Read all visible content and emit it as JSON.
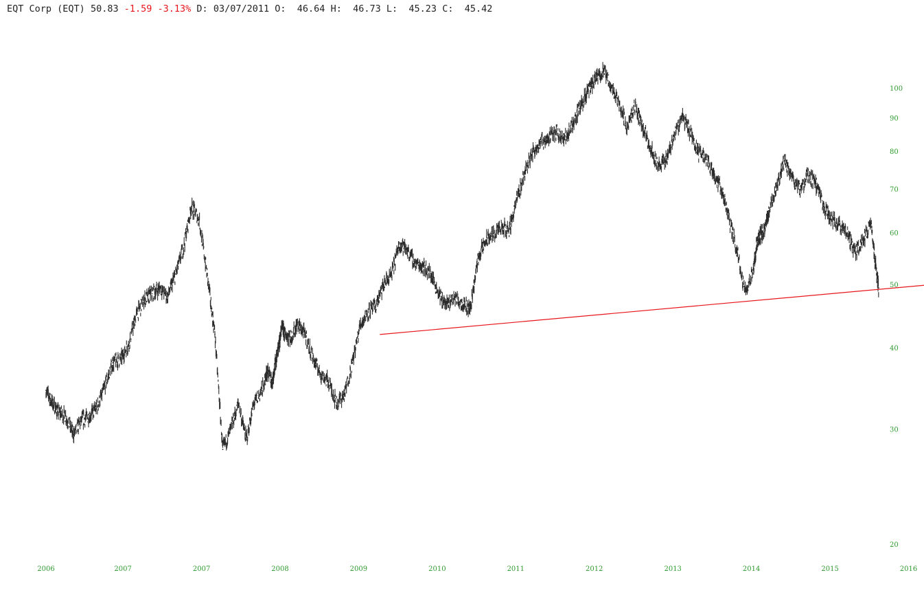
{
  "header": {
    "name": "EQT Corp (EQT)",
    "last": "50.83",
    "change": "-1.59",
    "change_pct": "-3.13%",
    "date_label": "D:",
    "date": "03/07/2011",
    "open_label": "O:",
    "open": "46.64",
    "high_label": "H:",
    "high": "46.73",
    "low_label": "L:",
    "low": "45.23",
    "close_label": "C:",
    "close": "45.42"
  },
  "colors": {
    "price": "#2b2b2b",
    "trendline": "#e8141a",
    "axis_text": "#2e9a2e",
    "negative": "#e8141a"
  },
  "chart_data": {
    "type": "line",
    "title": "",
    "xlabel": "",
    "ylabel": "",
    "y_scale": "log",
    "ylim": [
      19.5,
      110
    ],
    "xlim": [
      2006.0,
      2016.85
    ],
    "x_ticks": [
      "2006",
      "2007",
      "2007",
      "2008",
      "2009",
      "2010",
      "2011",
      "2012",
      "2013",
      "2014",
      "2015",
      "2016"
    ],
    "y_ticks": [
      20,
      30,
      40,
      50,
      60,
      70,
      80,
      90,
      100
    ],
    "grid": false,
    "legend": "none",
    "series": [
      {
        "style": "price",
        "x": [
          2006.0,
          2006.08,
          2006.15,
          2006.25,
          2006.35,
          2006.45,
          2006.55,
          2006.65,
          2006.75,
          2006.85,
          2006.95,
          2007.05,
          2007.15,
          2007.25,
          2007.35,
          2007.45,
          2007.55,
          2007.65,
          2007.75,
          2007.85,
          2007.95,
          2008.05,
          2008.15,
          2008.25,
          2008.35,
          2008.45,
          2008.55,
          2008.65,
          2008.75,
          2008.82,
          2008.88,
          2008.92,
          2008.96,
          2009.0,
          2009.05,
          2009.12,
          2009.2,
          2009.3,
          2009.4,
          2009.5,
          2009.6,
          2009.7,
          2009.8,
          2009.9,
          2010.0,
          2010.1,
          2010.2,
          2010.3,
          2010.4,
          2010.5,
          2010.6,
          2010.7,
          2010.8,
          2010.9,
          2011.0,
          2011.1,
          2011.2,
          2011.3,
          2011.4,
          2011.5,
          2011.6,
          2011.7,
          2011.8,
          2011.9,
          2012.0,
          2012.1,
          2012.2,
          2012.3,
          2012.4,
          2012.5,
          2012.6,
          2012.7,
          2012.8,
          2012.9,
          2013.0,
          2013.1,
          2013.2,
          2013.3,
          2013.4,
          2013.5,
          2013.6,
          2013.7,
          2013.8,
          2013.9,
          2014.0,
          2014.1,
          2014.2,
          2014.3,
          2014.4,
          2014.5,
          2014.6,
          2014.7,
          2014.8,
          2014.9,
          2015.0,
          2015.05,
          2015.1,
          2015.15,
          2015.2,
          2015.3,
          2015.4,
          2015.5,
          2015.6,
          2015.7,
          2015.8,
          2015.9,
          2016.0,
          2016.1,
          2016.2,
          2016.3,
          2016.4,
          2016.5,
          2016.55,
          2016.6
        ],
        "y": [
          34.5,
          33.0,
          32.0,
          31.5,
          29.5,
          31.0,
          31.5,
          32.5,
          35.0,
          38.0,
          38.5,
          40.5,
          45.0,
          47.5,
          48.5,
          49.5,
          48.0,
          52.0,
          57.0,
          66.0,
          63.0,
          52.0,
          42.0,
          28.0,
          30.0,
          33.0,
          29.0,
          33.0,
          34.5,
          37.0,
          35.5,
          38.0,
          40.0,
          43.0,
          42.0,
          41.5,
          43.5,
          42.0,
          38.5,
          36.5,
          35.5,
          33.0,
          34.0,
          38.0,
          43.5,
          45.5,
          46.5,
          50.0,
          52.0,
          58.0,
          56.5,
          54.0,
          53.5,
          52.0,
          48.5,
          46.5,
          48.0,
          47.0,
          46.0,
          55.0,
          58.5,
          60.0,
          61.0,
          61.0,
          68.0,
          75.0,
          80.0,
          83.0,
          84.0,
          86.0,
          83.5,
          88.0,
          94.0,
          99.0,
          103.5,
          106.5,
          100.5,
          95.0,
          87.0,
          94.0,
          87.0,
          81.0,
          76.0,
          78.0,
          85.0,
          91.0,
          86.0,
          80.0,
          78.5,
          74.0,
          70.0,
          63.0,
          56.0,
          49.0,
          52.0,
          58.0,
          60.0,
          60.5,
          65.0,
          71.0,
          77.5,
          73.0,
          70.0,
          73.5,
          71.5,
          66.0,
          63.0,
          62.0,
          60.0,
          56.0,
          58.5,
          62.5,
          55.0,
          49.5
        ]
      },
      {
        "style": "trendline",
        "x": [
          2010.25,
          2017.2
        ],
        "y": [
          42.0,
          50.0
        ]
      }
    ]
  }
}
